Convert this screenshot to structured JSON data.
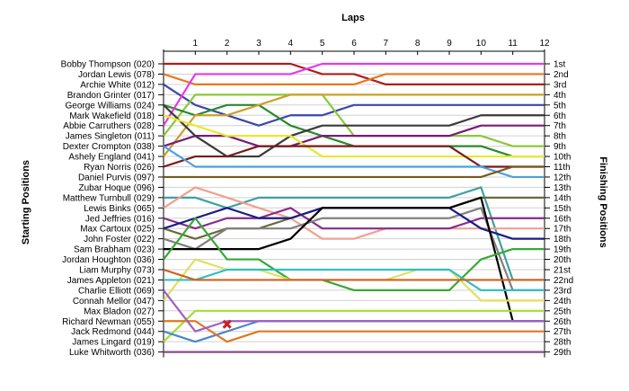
{
  "chart_data": {
    "type": "line",
    "xlabel": "Laps",
    "ylabel_left": "Starting Positions",
    "ylabel_right": "Finishing Positions",
    "laps": [
      0,
      1,
      2,
      3,
      4,
      5,
      6,
      7,
      8,
      9,
      10,
      11,
      12
    ],
    "lap_tick_labels": [
      "1",
      "2",
      "3",
      "4",
      "5",
      "6",
      "7",
      "8",
      "9",
      "10",
      "11",
      "12"
    ],
    "grid": "horizontal-per-position",
    "drivers": [
      "Bobby Thompson (020)",
      "Jordan Lewis (078)",
      "Archie White (012)",
      "Brandon Grinter (017)",
      "George Williams (024)",
      "Mark Wakefield (018)",
      "Abbie Carruthers (028)",
      "James Singleton (011)",
      "Dexter Crompton (038)",
      "Ashely England (041)",
      "Ryan Norris (026)",
      "Daniel Purvis (097)",
      "Zubar Hoque (096)",
      "Matthew Turnbull (029)",
      "Lewis Binks (065)",
      "Jed Jeffries (016)",
      "Max Cartoux (025)",
      "John Foster (022)",
      "Sam Brabham (023)",
      "Jordan Houghton (036)",
      "Liam Murphy (073)",
      "James Appleton (021)",
      "Charlie Elliott (069)",
      "Connah Mellor (047)",
      "Max Bladon (027)",
      "Richard Newman (055)",
      "Jack Redmond (044)",
      "James Lingard (019)",
      "Luke Whitworth (036)"
    ],
    "finishing_labels": [
      "1st",
      "2nd",
      "3rd",
      "4th",
      "5th",
      "6th",
      "7th",
      "8th",
      "9th",
      "10th",
      "11th",
      "12th",
      "13th",
      "14th",
      "15th",
      "16th",
      "17th",
      "18th",
      "19th",
      "20th",
      "21st",
      "22nd",
      "23rd",
      "24th",
      "25th",
      "26th",
      "27th",
      "28th",
      "29th"
    ],
    "series": [
      {
        "color": "#b01c1c",
        "positions": [
          1,
          1,
          1,
          1,
          1,
          2,
          2,
          3,
          3,
          3,
          3,
          3,
          3
        ]
      },
      {
        "color": "#e8781e",
        "positions": [
          2,
          3,
          3,
          3,
          3,
          3,
          3,
          2,
          2,
          2,
          2,
          2,
          2
        ]
      },
      {
        "color": "#3a48a8",
        "positions": [
          3,
          5,
          6,
          7,
          6,
          6,
          5,
          5,
          5,
          5,
          5,
          5,
          5
        ]
      },
      {
        "color": "#8bc83a",
        "positions": [
          8,
          4,
          4,
          4,
          4,
          4,
          8,
          8,
          8,
          8,
          8,
          9,
          9
        ]
      },
      {
        "color": "#2a8a2a",
        "positions": [
          5,
          6,
          5,
          5,
          7,
          8,
          9,
          9,
          9,
          9,
          9,
          10,
          10
        ]
      },
      {
        "color": "#c8a028",
        "positions": [
          10,
          6,
          6,
          5,
          4,
          4,
          4,
          4,
          4,
          4,
          4,
          4,
          4
        ]
      },
      {
        "color": "#e838e8",
        "positions": [
          7,
          2,
          2,
          2,
          2,
          1,
          1,
          1,
          1,
          1,
          1,
          1,
          1
        ]
      },
      {
        "color": "#7a1a7a",
        "positions": [
          9,
          8,
          8,
          9,
          9,
          8,
          8,
          8,
          8,
          8,
          7,
          7,
          7
        ]
      },
      {
        "color": "#3a3a3a",
        "positions": [
          5,
          8,
          10,
          10,
          8,
          7,
          7,
          7,
          7,
          7,
          6,
          6,
          6
        ]
      },
      {
        "color": "#e8e830",
        "positions": [
          6,
          7,
          8,
          8,
          8,
          10,
          10,
          10,
          10,
          10,
          10,
          10,
          10
        ]
      },
      {
        "color": "#7a1a1a",
        "positions": [
          11,
          10,
          10,
          9,
          9,
          9,
          9,
          9,
          9,
          9,
          11,
          11,
          11
        ]
      },
      {
        "color": "#4aa0e0",
        "positions": [
          9,
          11,
          11,
          11,
          11,
          11,
          11,
          11,
          11,
          11,
          11,
          12,
          12
        ]
      },
      {
        "color": "#7a5a1a",
        "positions": [
          12,
          12,
          12,
          12,
          12,
          12,
          12,
          12,
          12,
          12,
          12,
          11,
          11
        ]
      },
      {
        "color": "#40a0a0",
        "positions": [
          14,
          14,
          15,
          14,
          14,
          14,
          14,
          14,
          14,
          14,
          13,
          22,
          22
        ]
      },
      {
        "color": "#f0a090",
        "positions": [
          15,
          13,
          14,
          15,
          16,
          18,
          18,
          17,
          17,
          17,
          17,
          17,
          17
        ]
      },
      {
        "color": "#8a2a8a",
        "positions": [
          16,
          17,
          16,
          16,
          15,
          17,
          17,
          17,
          17,
          17,
          16,
          16,
          16
        ]
      },
      {
        "color": "#6a6a3a",
        "positions": [
          17,
          18,
          17,
          17,
          16,
          15,
          15,
          15,
          15,
          15,
          14,
          14,
          14
        ]
      },
      {
        "color": "#808080",
        "positions": [
          18,
          19,
          17,
          17,
          17,
          16,
          16,
          16,
          16,
          16,
          15,
          23,
          23
        ]
      },
      {
        "color": "#1a1a8a",
        "positions": [
          17,
          16,
          15,
          16,
          16,
          15,
          15,
          15,
          15,
          15,
          17,
          18,
          18
        ]
      },
      {
        "color": "#000000",
        "positions": [
          19,
          19,
          19,
          19,
          18,
          15,
          15,
          15,
          15,
          15,
          14,
          26,
          26
        ]
      },
      {
        "color": "#38a838",
        "positions": [
          20,
          16,
          20,
          20,
          22,
          22,
          23,
          23,
          23,
          23,
          20,
          19,
          19
        ]
      },
      {
        "color": "#e0e060",
        "positions": [
          24,
          20,
          21,
          21,
          22,
          22,
          22,
          22,
          21,
          21,
          24,
          24,
          24
        ]
      },
      {
        "color": "#30c0c0",
        "positions": [
          22,
          22,
          21,
          21,
          21,
          21,
          21,
          21,
          21,
          21,
          23,
          23,
          23
        ]
      },
      {
        "color": "#d06020",
        "positions": [
          21,
          22,
          22,
          22,
          22,
          22,
          22,
          22,
          22,
          22,
          22,
          22,
          22
        ]
      },
      {
        "color": "#a0e030",
        "positions": [
          28,
          25,
          25,
          25,
          25,
          25,
          25,
          25,
          25,
          25,
          25,
          25,
          25
        ]
      },
      {
        "color": "#4a88c8",
        "positions": [
          27,
          28,
          27,
          26,
          26,
          26,
          26,
          26,
          26,
          26,
          26,
          26,
          26
        ]
      },
      {
        "color": "#e07820",
        "positions": [
          26,
          26,
          28,
          27,
          27,
          27,
          27,
          27,
          27,
          27,
          27,
          27,
          27
        ]
      },
      {
        "color": "#a060c0",
        "positions": [
          23,
          27,
          26,
          26,
          26,
          26,
          26,
          26,
          26,
          26,
          26,
          26,
          26
        ]
      },
      {
        "color": "#8a4a8a",
        "positions": [
          29,
          29,
          29,
          29,
          29,
          29,
          29,
          29,
          29,
          29,
          29,
          29,
          29
        ]
      }
    ],
    "markers": [
      {
        "lap": 1.0,
        "position": 26.3,
        "symbol": "x",
        "color": "#cc1f1f"
      }
    ]
  }
}
